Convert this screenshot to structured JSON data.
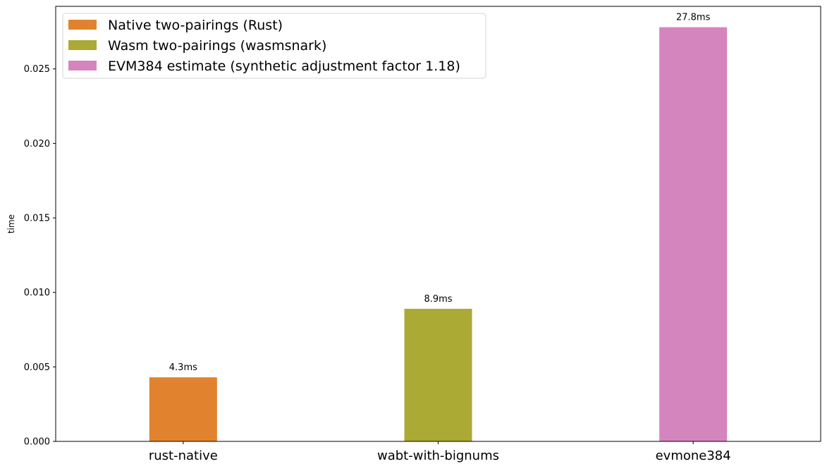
{
  "chart_data": {
    "type": "bar",
    "title": "",
    "xlabel": "",
    "ylabel": "time",
    "ylim": [
      0,
      0.0292
    ],
    "yticks": [
      "0.000",
      "0.005",
      "0.010",
      "0.015",
      "0.020",
      "0.025"
    ],
    "ytick_values": [
      0,
      0.005,
      0.01,
      0.015,
      0.02,
      0.025
    ],
    "categories": [
      "rust-native",
      "wabt-with-bignums",
      "evmone384"
    ],
    "grid": false,
    "legend_position": "top-left",
    "series": [
      {
        "name": "Native two-pairings (Rust)",
        "color": "#e1832e",
        "values": [
          0.0043,
          null,
          null
        ],
        "labels": [
          "4.3ms",
          null,
          null
        ]
      },
      {
        "name": "Wasm two-pairings (wasmsnark)",
        "color": "#aaaa35",
        "values": [
          null,
          0.0089,
          null
        ],
        "labels": [
          null,
          "8.9ms",
          null
        ]
      },
      {
        "name": "EVM384 estimate (synthetic adjustment factor 1.18)",
        "color": "#d585be",
        "values": [
          null,
          null,
          0.0278
        ],
        "labels": [
          null,
          null,
          "27.8ms"
        ]
      }
    ]
  }
}
